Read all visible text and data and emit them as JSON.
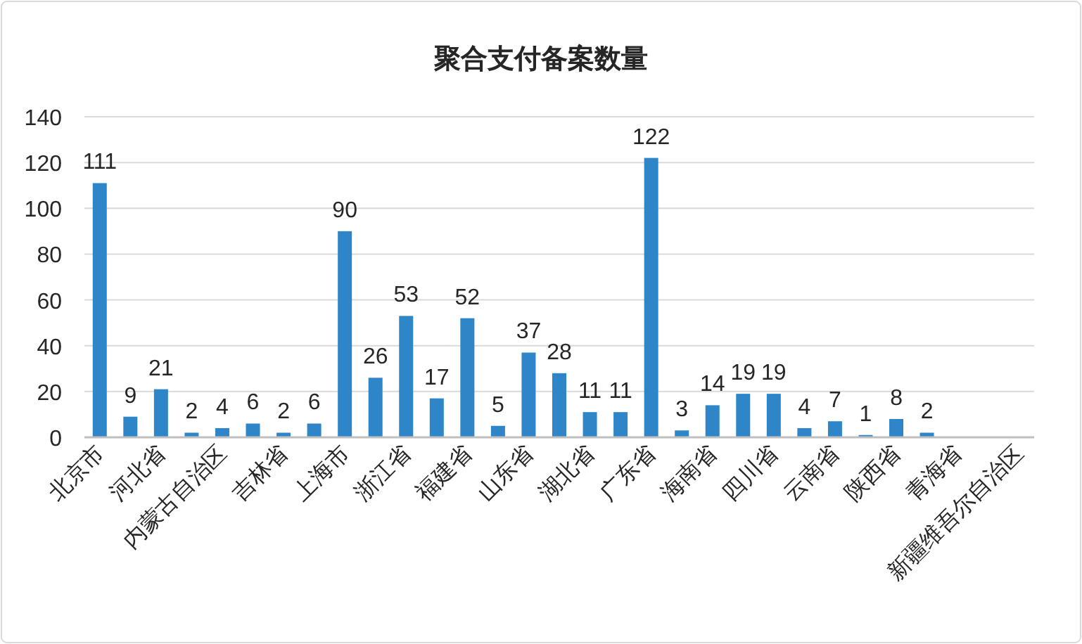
{
  "chart_data": {
    "type": "bar",
    "title": "聚合支付备案数量",
    "categories": [
      "北京市",
      null,
      "河北省",
      null,
      "内蒙古自治区",
      null,
      "吉林省",
      null,
      "上海市",
      null,
      "浙江省",
      null,
      "福建省",
      null,
      "山东省",
      null,
      "湖北省",
      null,
      "广东省",
      null,
      "海南省",
      null,
      "四川省",
      null,
      "云南省",
      null,
      "陕西省",
      null,
      "青海省",
      null,
      "新疆维吾尔自治区"
    ],
    "values": [
      111,
      9,
      21,
      2,
      4,
      6,
      2,
      6,
      90,
      26,
      53,
      17,
      52,
      5,
      37,
      28,
      11,
      11,
      122,
      3,
      14,
      19,
      19,
      4,
      7,
      1,
      8,
      2,
      null,
      null,
      null
    ],
    "color": "#2e86c8",
    "ylim": [
      0,
      140
    ],
    "yticks": [
      0,
      20,
      40,
      60,
      80,
      100,
      120,
      140
    ],
    "grid": "y",
    "data_labels": true
  }
}
